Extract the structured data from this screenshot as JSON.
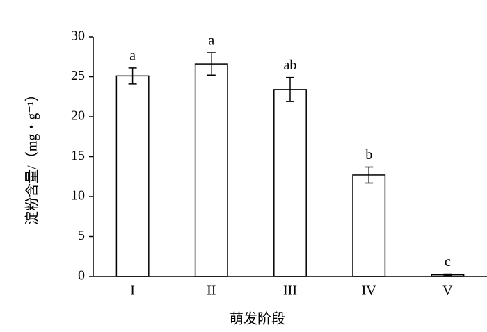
{
  "chart_data": {
    "type": "bar",
    "x_label": "萌发阶段",
    "y_label": "淀粉含量/（mg・g⁻¹）",
    "categories": [
      "I",
      "II",
      "III",
      "IV",
      "V"
    ],
    "values": [
      25.1,
      26.6,
      23.4,
      12.7,
      0.2
    ],
    "errors": [
      1.0,
      1.4,
      1.5,
      1.0,
      0.1
    ],
    "significance": [
      "a",
      "a",
      "ab",
      "b",
      "c"
    ],
    "color": "#ffffff",
    "ylim": [
      0,
      30
    ],
    "yticks": [
      0,
      5,
      10,
      15,
      20,
      25,
      30
    ],
    "grid": false
  }
}
